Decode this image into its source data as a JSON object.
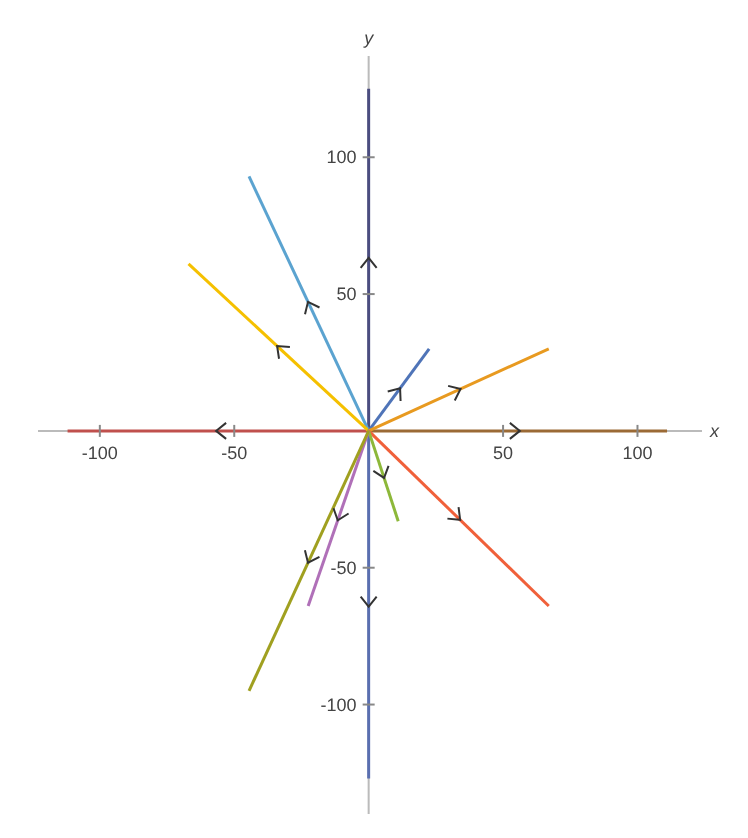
{
  "chart_data": {
    "type": "line",
    "xlabel": "x",
    "ylabel": "y",
    "xlim": [
      -123,
      124
    ],
    "ylim": [
      -140,
      137
    ],
    "xticks": [
      -100,
      -50,
      50,
      100
    ],
    "yticks": [
      -100,
      -50,
      50,
      100
    ],
    "series": [
      {
        "color": "#4b4d80",
        "x": [
          0,
          0
        ],
        "values": [
          0,
          125
        ]
      },
      {
        "color": "#5a6fb0",
        "x": [
          0,
          0
        ],
        "values": [
          0,
          -127
        ]
      },
      {
        "color": "#c0504d",
        "x": [
          0,
          -112
        ],
        "values": [
          0,
          0
        ]
      },
      {
        "color": "#9b6a35",
        "x": [
          0,
          111
        ],
        "values": [
          0,
          0
        ]
      },
      {
        "color": "#5ba3d0",
        "x": [
          0,
          -44.5
        ],
        "values": [
          0,
          93
        ]
      },
      {
        "color": "#f5c000",
        "x": [
          0,
          -67
        ],
        "values": [
          0,
          61
        ]
      },
      {
        "color": "#4f74b8",
        "x": [
          0,
          22.5
        ],
        "values": [
          0,
          30
        ]
      },
      {
        "color": "#e89a20",
        "x": [
          0,
          67
        ],
        "values": [
          0,
          30
        ]
      },
      {
        "color": "#f0603a",
        "x": [
          0,
          67
        ],
        "values": [
          0,
          -64
        ]
      },
      {
        "color": "#8db83a",
        "x": [
          0,
          11
        ],
        "values": [
          0,
          -33
        ]
      },
      {
        "color": "#b070b8",
        "x": [
          0,
          -22.5
        ],
        "values": [
          0,
          -64
        ]
      },
      {
        "color": "#a0a020",
        "x": [
          0,
          -44.5
        ],
        "values": [
          0,
          -95
        ]
      }
    ]
  }
}
